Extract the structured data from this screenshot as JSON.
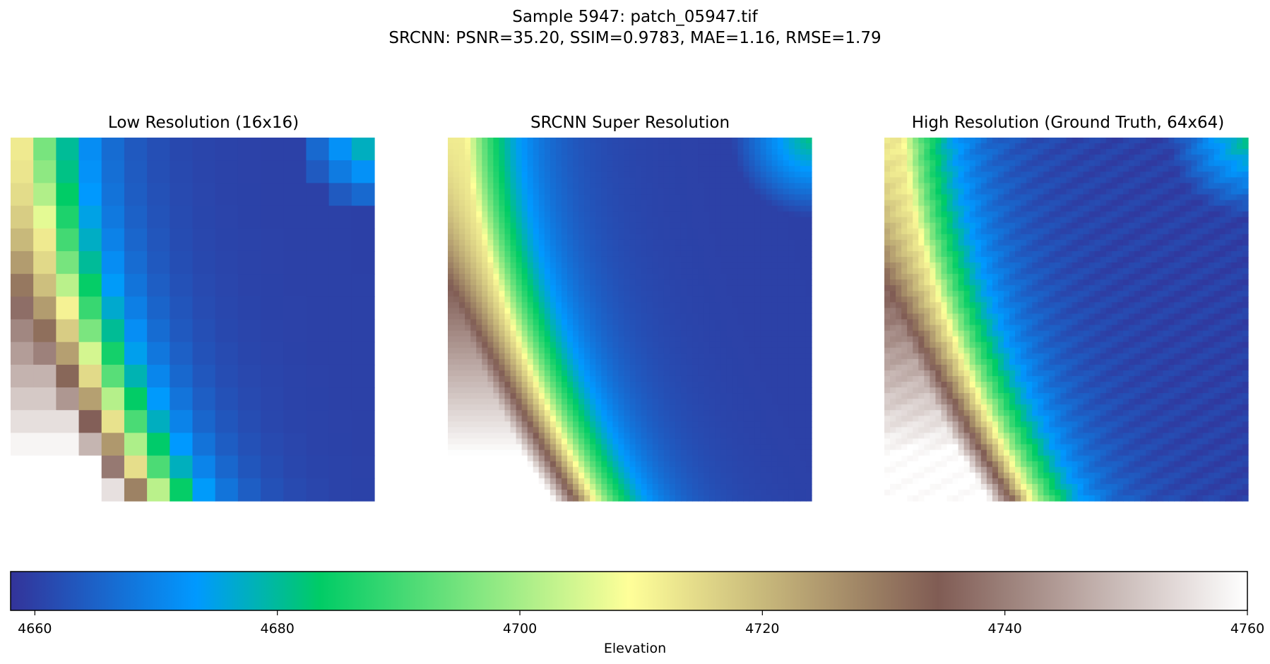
{
  "figure": {
    "title_line1": "Sample 5947: patch_05947.tif",
    "title_line2": "SRCNN: PSNR=35.20, SSIM=0.9783, MAE=1.16, RMSE=1.79"
  },
  "colormap": {
    "name": "terrain",
    "stops": [
      [
        0.0,
        "#333399"
      ],
      [
        0.15,
        "#0099ff"
      ],
      [
        0.25,
        "#00cc66"
      ],
      [
        0.5,
        "#ffff99"
      ],
      [
        0.75,
        "#805c54"
      ],
      [
        1.0,
        "#ffffff"
      ]
    ]
  },
  "chart_data": [
    {
      "type": "heatmap",
      "title": "Low Resolution (16x16)",
      "grid": [
        16,
        16
      ],
      "vmin": 4658,
      "vmax": 4760
    },
    {
      "type": "heatmap",
      "title": "SRCNN Super Resolution",
      "grid": [
        64,
        64
      ],
      "vmin": 4658,
      "vmax": 4760
    },
    {
      "type": "heatmap",
      "title": "High Resolution (Ground Truth, 64x64)",
      "grid": [
        64,
        64
      ],
      "vmin": 4658,
      "vmax": 4760
    }
  ],
  "colorbar": {
    "label": "Elevation",
    "range": [
      4658,
      4760
    ],
    "ticks": [
      4660,
      4680,
      4700,
      4720,
      4740,
      4760
    ]
  }
}
